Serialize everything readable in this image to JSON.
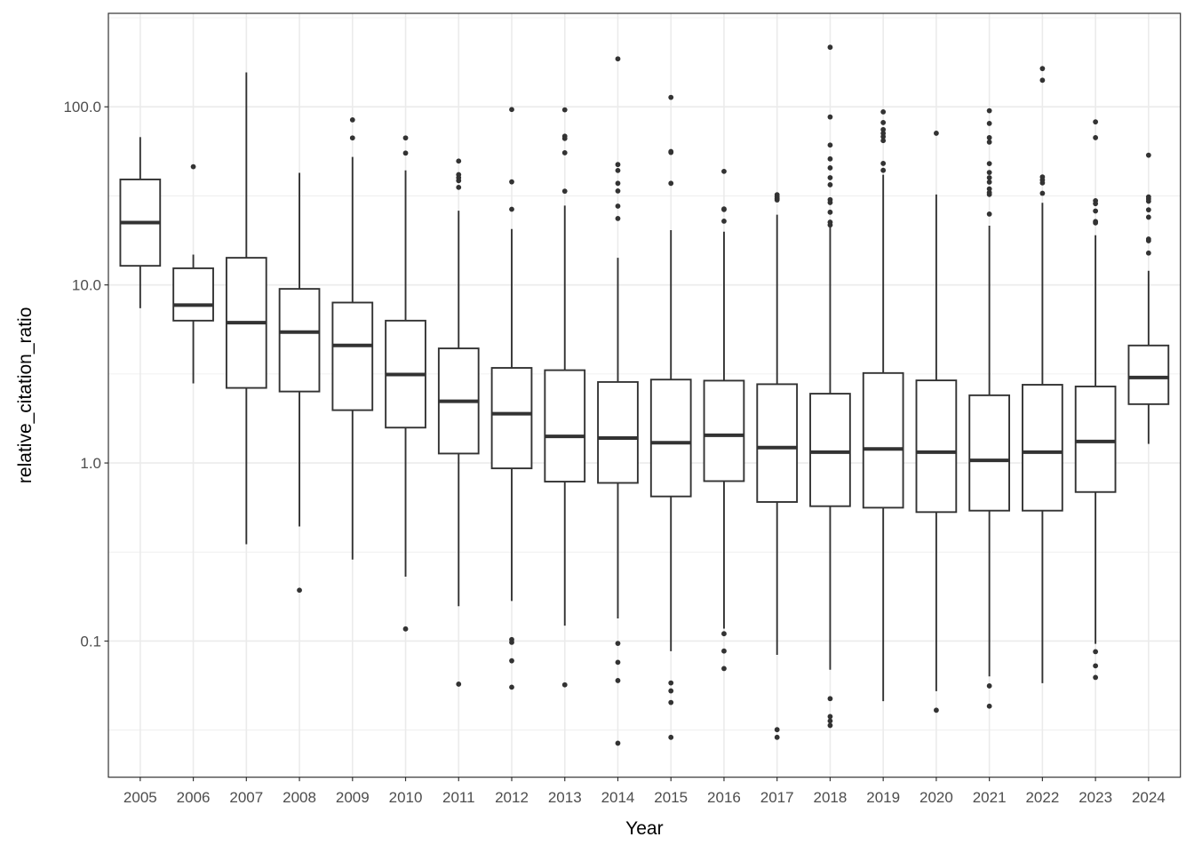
{
  "chart_data": {
    "type": "boxplot",
    "xlabel": "Year",
    "ylabel": "relative_citation_ratio",
    "y_scale": "log10",
    "ylim": [
      0.0172,
      335
    ],
    "y_ticks": [
      100,
      10,
      1,
      0.1
    ],
    "y_tick_labels": [
      "100.0",
      "10.0",
      "1.0",
      "0.1"
    ],
    "grid": true,
    "theme": "bw",
    "colors": {
      "box": "#333333",
      "grid": "#ebebeb",
      "tick_text": "#4d4d4d"
    },
    "categories": [
      "2005",
      "2006",
      "2007",
      "2008",
      "2009",
      "2010",
      "2011",
      "2012",
      "2013",
      "2014",
      "2015",
      "2016",
      "2017",
      "2018",
      "2019",
      "2020",
      "2021",
      "2022",
      "2023",
      "2024"
    ],
    "boxes": [
      {
        "lower": 7.4,
        "q1": 12.8,
        "median": 22.4,
        "q3": 39.1,
        "upper": 67.6,
        "outliers": []
      },
      {
        "lower": 2.8,
        "q1": 6.3,
        "median": 7.7,
        "q3": 12.4,
        "upper": 14.8,
        "outliers": [
          46.1
        ]
      },
      {
        "lower": 0.35,
        "q1": 2.64,
        "median": 6.14,
        "q3": 14.2,
        "upper": 156,
        "outliers": []
      },
      {
        "lower": 0.44,
        "q1": 2.52,
        "median": 5.43,
        "q3": 9.5,
        "upper": 42.6,
        "outliers": [
          0.193
        ]
      },
      {
        "lower": 0.287,
        "q1": 1.98,
        "median": 4.57,
        "q3": 7.96,
        "upper": 52.3,
        "outliers": [
          84.5,
          66.9
        ]
      },
      {
        "lower": 0.23,
        "q1": 1.58,
        "median": 3.14,
        "q3": 6.3,
        "upper": 44.0,
        "outliers": [
          66.9,
          55.0,
          0.117
        ]
      },
      {
        "lower": 0.157,
        "q1": 1.13,
        "median": 2.22,
        "q3": 4.4,
        "upper": 26.1,
        "outliers": [
          49.6,
          41.6,
          40.0,
          38.5,
          35.3,
          0.0573
        ]
      },
      {
        "lower": 0.168,
        "q1": 0.933,
        "median": 1.89,
        "q3": 3.42,
        "upper": 20.6,
        "outliers": [
          96.6,
          37.9,
          26.6,
          0.102,
          0.0984,
          0.0775,
          0.0551
        ]
      },
      {
        "lower": 0.122,
        "q1": 0.786,
        "median": 1.41,
        "q3": 3.32,
        "upper": 27.9,
        "outliers": [
          96.2,
          68.4,
          66.4,
          55.2,
          33.6,
          0.0568
        ]
      },
      {
        "lower": 0.134,
        "q1": 0.773,
        "median": 1.38,
        "q3": 2.85,
        "upper": 14.2,
        "outliers": [
          186,
          47.4,
          43.9,
          37.2,
          33.7,
          27.7,
          23.6,
          0.097,
          0.076,
          0.06,
          0.0267
        ]
      },
      {
        "lower": 0.0877,
        "q1": 0.649,
        "median": 1.3,
        "q3": 2.94,
        "upper": 20.3,
        "outliers": [
          113,
          56.1,
          55.4,
          37.2,
          0.0582,
          0.0525,
          0.0452,
          0.0288
        ]
      },
      {
        "lower": 0.1175,
        "q1": 0.791,
        "median": 1.43,
        "q3": 2.9,
        "upper": 19.9,
        "outliers": [
          43.4,
          26.7,
          26.5,
          22.8,
          0.11,
          0.0879,
          0.0701
        ]
      },
      {
        "lower": 0.0837,
        "q1": 0.604,
        "median": 1.22,
        "q3": 2.77,
        "upper": 24.8,
        "outliers": [
          32.1,
          31.2,
          30.5,
          30.0,
          0.0318,
          0.0288
        ]
      },
      {
        "lower": 0.069,
        "q1": 0.572,
        "median": 1.15,
        "q3": 2.45,
        "upper": 21.3,
        "outliers": [
          216,
          87.7,
          61.0,
          51.0,
          45.4,
          40.0,
          36.5,
          30.1,
          29.0,
          25.6,
          22.5,
          21.7,
          0.0475,
          0.0377,
          0.0356,
          0.0336
        ]
      },
      {
        "lower": 0.046,
        "q1": 0.561,
        "median": 1.2,
        "q3": 3.2,
        "upper": 41.6,
        "outliers": [
          93.7,
          81.6,
          74.5,
          71.0,
          68.0,
          64.6,
          48.1,
          44.0
        ]
      },
      {
        "lower": 0.0523,
        "q1": 0.53,
        "median": 1.15,
        "q3": 2.91,
        "upper": 32.2,
        "outliers": [
          71.1,
          0.0409
        ]
      },
      {
        "lower": 0.0633,
        "q1": 0.54,
        "median": 1.035,
        "q3": 2.4,
        "upper": 21.5,
        "outliers": [
          95.1,
          80.7,
          67.1,
          63.4,
          48.0,
          42.8,
          40.0,
          37.8,
          34.6,
          33.0,
          32.2,
          25.0,
          0.056,
          0.0431
        ]
      },
      {
        "lower": 0.058,
        "q1": 0.54,
        "median": 1.15,
        "q3": 2.75,
        "upper": 28.9,
        "outliers": [
          164,
          141,
          40.4,
          38.8,
          37.4,
          32.7
        ]
      },
      {
        "lower": 0.0964,
        "q1": 0.687,
        "median": 1.32,
        "q3": 2.69,
        "upper": 19.0,
        "outliers": [
          82.3,
          67.1,
          29.7,
          28.6,
          26.0,
          22.7,
          22.3,
          0.0872,
          0.0726,
          0.0625
        ]
      },
      {
        "lower": 1.28,
        "q1": 2.14,
        "median": 3.02,
        "q3": 4.57,
        "upper": 12.0,
        "outliers": [
          53.5,
          31.2,
          30.4,
          29.5,
          26.4,
          24.0,
          18.1,
          17.7,
          15.1
        ]
      }
    ]
  }
}
